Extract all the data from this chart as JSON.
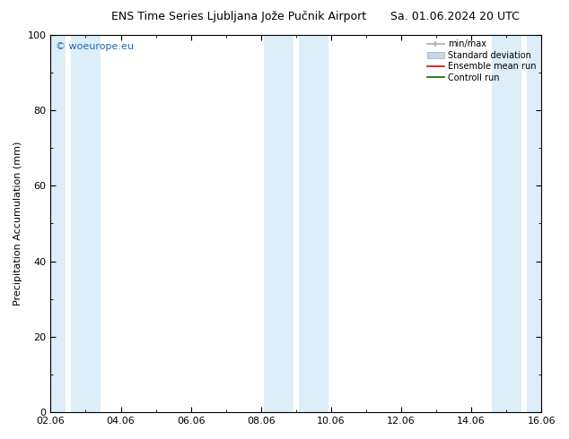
{
  "title_left": "ENS Time Series Ljubljana Jože Pučnik Airport",
  "title_right": "Sa. 01.06.2024 20 UTC",
  "ylabel": "Precipitation Accumulation (mm)",
  "xlim_start": 0.0,
  "xlim_end": 14.0,
  "ylim": [
    0,
    100
  ],
  "yticks": [
    0,
    20,
    40,
    60,
    80,
    100
  ],
  "xtick_labels": [
    "02.06",
    "04.06",
    "06.06",
    "08.06",
    "10.06",
    "12.06",
    "14.06",
    "16.06"
  ],
  "xtick_positions": [
    0,
    2,
    4,
    6,
    8,
    10,
    12,
    14
  ],
  "watermark": "© woeurope.eu",
  "watermark_color": "#1a6abf",
  "shaded_bands": [
    {
      "xmin": 0.0,
      "xmax": 0.42,
      "color": "#ddeef8"
    },
    {
      "xmin": 0.58,
      "xmax": 1.42,
      "color": "#ddeef8"
    },
    {
      "xmin": 6.08,
      "xmax": 6.92,
      "color": "#ddeef8"
    },
    {
      "xmin": 7.08,
      "xmax": 7.92,
      "color": "#ddeef8"
    },
    {
      "xmin": 12.58,
      "xmax": 13.42,
      "color": "#ddeef8"
    },
    {
      "xmin": 13.58,
      "xmax": 14.0,
      "color": "#ddeef8"
    }
  ],
  "legend_entries": [
    {
      "label": "min/max",
      "color": "#aaaaaa"
    },
    {
      "label": "Standard deviation",
      "color": "#c5d8ea"
    },
    {
      "label": "Ensemble mean run",
      "color": "#dd0000"
    },
    {
      "label": "Controll run",
      "color": "#006600"
    }
  ],
  "bg_color": "#ffffff",
  "plot_bg_color": "#ffffff",
  "axis_color": "#000000",
  "font_size_title": 9,
  "font_size_labels": 8,
  "font_size_ticks": 8,
  "font_size_watermark": 8,
  "font_size_legend": 7
}
